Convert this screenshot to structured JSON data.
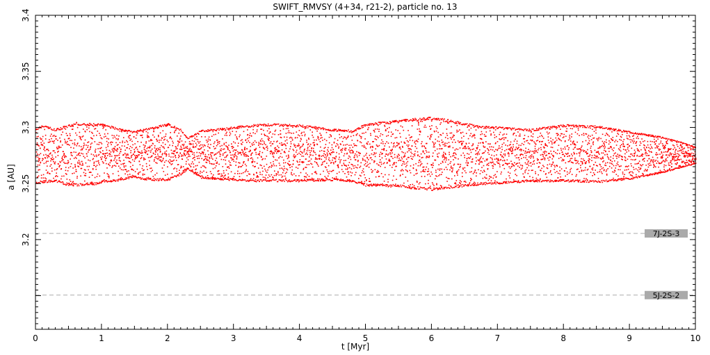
{
  "chart_data": {
    "type": "scatter",
    "title": "SWIFT_RMVSY (4+34, r21-2), particle no. 13",
    "xlabel": "t [Myr]",
    "ylabel": "a [AU]",
    "xlim": [
      0,
      10
    ],
    "ylim": [
      3.12,
      3.4
    ],
    "x_ticks": [
      "0",
      "1",
      "2",
      "3",
      "4",
      "5",
      "6",
      "7",
      "8",
      "9",
      "10"
    ],
    "y_ticks": [
      "3.2",
      "3.25",
      "3.3",
      "3.35",
      "3.4"
    ],
    "grid": false,
    "series": [
      {
        "color": "#ff0000",
        "envelope": {
          "t": [
            0.0,
            0.1,
            0.3,
            0.45,
            0.6,
            0.9,
            1.0,
            1.3,
            1.5,
            1.6,
            1.8,
            2.0,
            2.2,
            2.3,
            2.5,
            2.7,
            3.0,
            3.3,
            3.6,
            4.0,
            4.5,
            4.8,
            5.0,
            5.5,
            5.8,
            6.0,
            6.3,
            6.7,
            7.0,
            7.5,
            8.0,
            8.5,
            9.0,
            9.5,
            9.8,
            10.0
          ],
          "a_max": [
            3.299,
            3.303,
            3.299,
            3.302,
            3.305,
            3.304,
            3.304,
            3.299,
            3.297,
            3.299,
            3.301,
            3.304,
            3.299,
            3.291,
            3.298,
            3.299,
            3.301,
            3.303,
            3.304,
            3.303,
            3.299,
            3.298,
            3.304,
            3.307,
            3.309,
            3.31,
            3.307,
            3.302,
            3.301,
            3.299,
            3.303,
            3.302,
            3.297,
            3.292,
            3.287,
            3.283
          ],
          "a_min": [
            3.25,
            3.251,
            3.252,
            3.249,
            3.248,
            3.249,
            3.251,
            3.253,
            3.256,
            3.254,
            3.253,
            3.253,
            3.258,
            3.263,
            3.255,
            3.254,
            3.253,
            3.252,
            3.252,
            3.252,
            3.253,
            3.252,
            3.248,
            3.247,
            3.245,
            3.244,
            3.246,
            3.249,
            3.25,
            3.252,
            3.252,
            3.251,
            3.254,
            3.26,
            3.265,
            3.268
          ]
        }
      }
    ],
    "resonances": [
      {
        "label": "7J-2S-3",
        "a": 3.2055,
        "line_color": "#aaaaaa",
        "label_bg": "#aaaaaa"
      },
      {
        "label": "5J-2S-2",
        "a": 3.1505,
        "line_color": "#aaaaaa",
        "label_bg": "#aaaaaa"
      }
    ]
  }
}
